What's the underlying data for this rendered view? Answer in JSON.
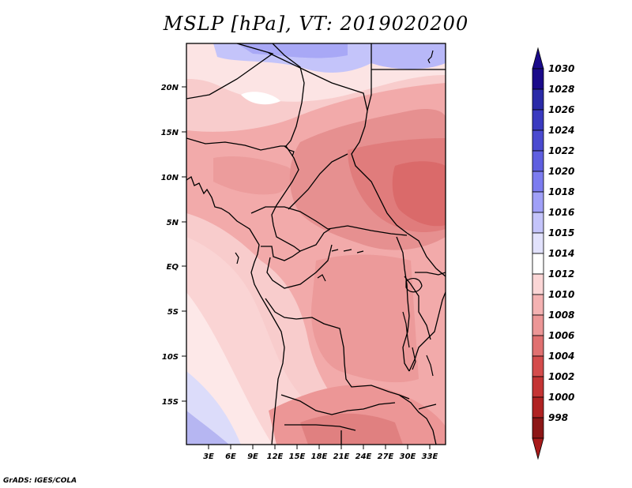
{
  "title": "MSLP [hPa], VT: 2019020200",
  "credit": "GrADS: IGES/COLA",
  "map": {
    "lat_labels": [
      "20N",
      "15N",
      "10N",
      "5N",
      "EQ",
      "5S",
      "10S",
      "15S"
    ],
    "lon_labels": [
      "3E",
      "6E",
      "9E",
      "12E",
      "15E",
      "18E",
      "21E",
      "24E",
      "27E",
      "30E",
      "33E"
    ]
  },
  "colorbar": {
    "levels": [
      "1030",
      "1028",
      "1026",
      "1024",
      "1022",
      "1020",
      "1018",
      "1016",
      "1015",
      "1014",
      "1012",
      "1010",
      "1008",
      "1006",
      "1004",
      "1002",
      "1000",
      "998"
    ],
    "colors": [
      "#1a0a8a",
      "#2a2aa8",
      "#3a3ac0",
      "#4a4ad0",
      "#5f5fe0",
      "#7c7cf0",
      "#a0a0f8",
      "#c4c4fa",
      "#e2e2fc",
      "#ffffff",
      "#fbd6d6",
      "#f4b2b2",
      "#ec9696",
      "#e07070",
      "#d44c4c",
      "#c43434",
      "#b02222",
      "#8c1616"
    ],
    "top_color": "#1a0a8a",
    "bottom_color": "#a81a1a"
  }
}
